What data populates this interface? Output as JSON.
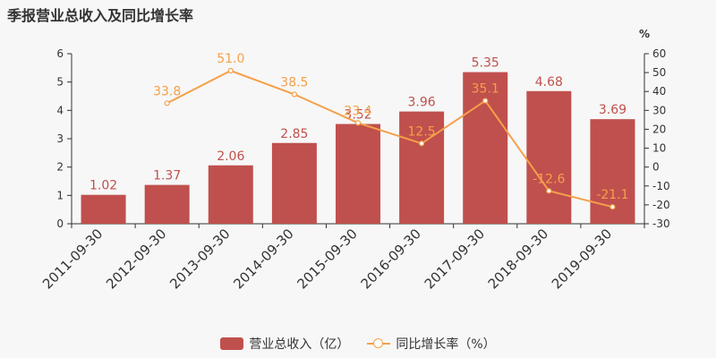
{
  "chart_data": {
    "type": "bar",
    "title": "季报营业总收入及同比增长率",
    "categories": [
      "2011-09-30",
      "2012-09-30",
      "2013-09-30",
      "2014-09-30",
      "2015-09-30",
      "2016-09-30",
      "2017-09-30",
      "2018-09-30",
      "2019-09-30"
    ],
    "series": [
      {
        "name": "营业总收入（亿）",
        "type": "bar",
        "axis": "left",
        "color": "#c0504d",
        "values": [
          1.02,
          1.37,
          2.06,
          2.85,
          3.52,
          3.96,
          5.35,
          4.68,
          3.69
        ],
        "labels": [
          "1.02",
          "1.37",
          "2.06",
          "2.85",
          "3.52",
          "3.96",
          "5.35",
          "4.68",
          "3.69"
        ]
      },
      {
        "name": "同比增长率（%）",
        "type": "line",
        "axis": "right",
        "color": "#f5a04a",
        "values": [
          null,
          33.8,
          51.0,
          38.5,
          23.4,
          12.5,
          35.1,
          -12.6,
          -21.1
        ],
        "labels": [
          "",
          "33.8",
          "51.0",
          "38.5",
          "23.4",
          "12.5",
          "35.1",
          "-12.6",
          "-21.1"
        ]
      }
    ],
    "y_left": {
      "min": 0,
      "max": 6,
      "ticks": [
        "0",
        "1",
        "2",
        "3",
        "4",
        "5",
        "6"
      ]
    },
    "y_right": {
      "label": "%",
      "min": -30,
      "max": 60,
      "ticks": [
        "-30",
        "-20",
        "-10",
        "0",
        "10",
        "20",
        "30",
        "40",
        "50",
        "60"
      ]
    },
    "grid": false,
    "legend_position": "bottom"
  },
  "legend": {
    "bar_label": "营业总收入（亿）",
    "line_label": "同比增长率（%）"
  }
}
